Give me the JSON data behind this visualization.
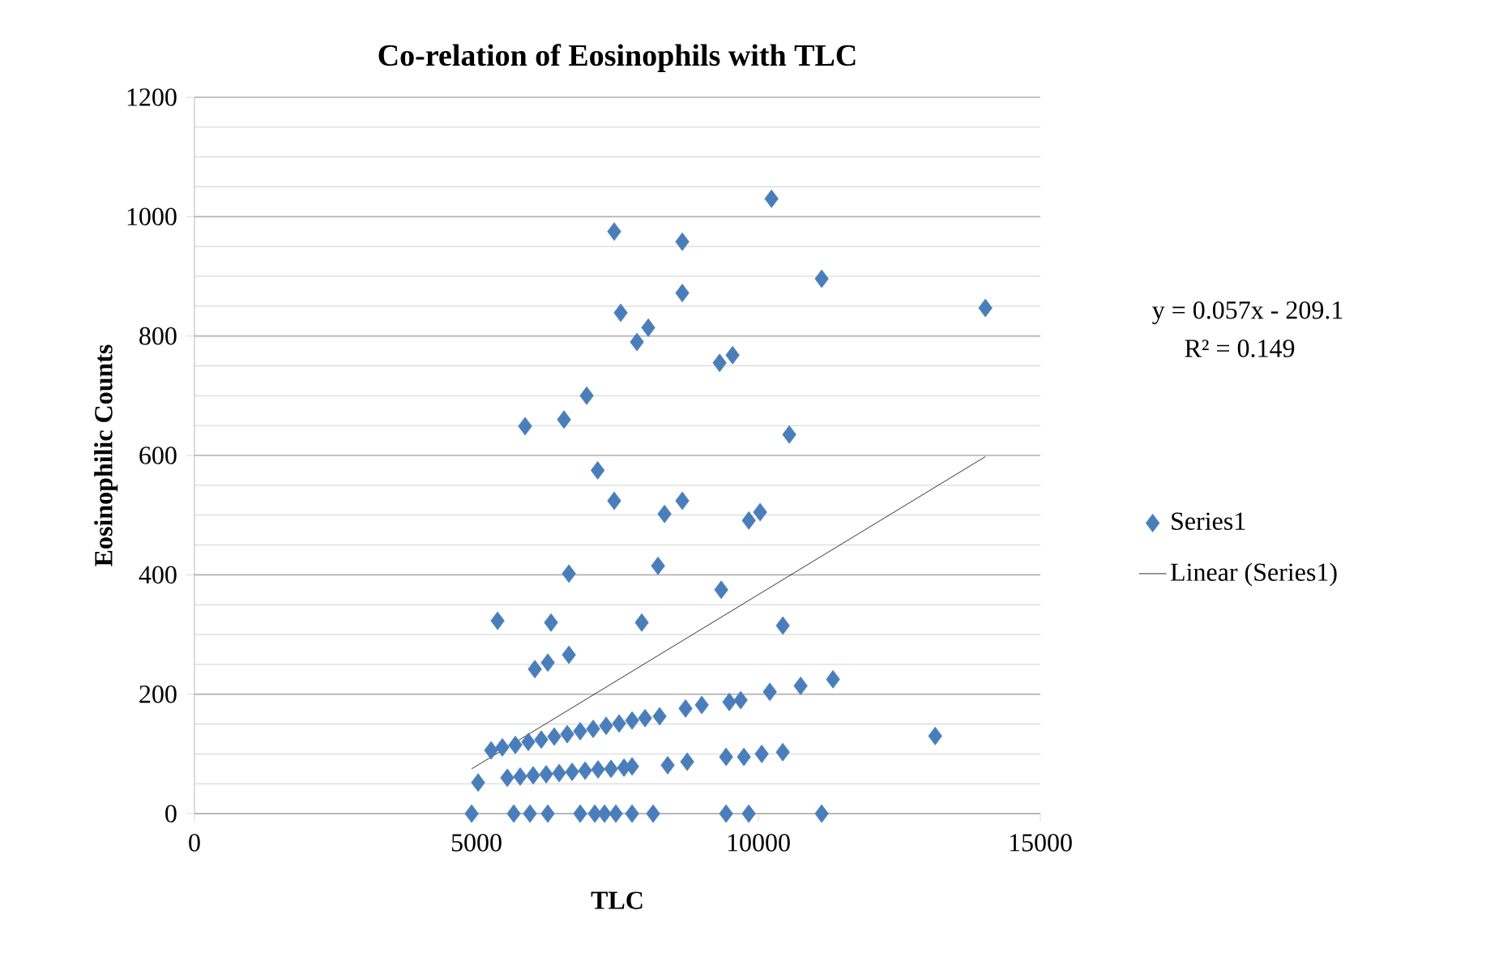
{
  "chart_data": {
    "type": "scatter",
    "title": "Co-relation of Eosinophils with TLC",
    "xlabel": "TLC",
    "ylabel": "Eosinophilic Counts",
    "xlim": [
      0,
      15000
    ],
    "xticks": [
      0,
      5000,
      10000,
      15000
    ],
    "ylim": [
      0,
      1200
    ],
    "yticks": [
      0,
      200,
      400,
      600,
      800,
      1000,
      1200
    ],
    "grid": "y",
    "legend": "right",
    "marker": "diamond",
    "annotations": [
      "y = 0.057x - 209.1",
      "R² = 0.149"
    ],
    "series": [
      {
        "name": "Series1",
        "color": "#4a7ebb",
        "x": [
          10232,
          7443,
          8650,
          11122,
          14025,
          8650,
          7558,
          8047,
          7846,
          9542,
          9312,
          6955,
          6553,
          5863,
          10548,
          7150,
          7443,
          8335,
          8650,
          9830,
          10030,
          6640,
          8220,
          9341,
          5375,
          6323,
          7932,
          10433,
          6640,
          6036,
          6266,
          11323,
          10749,
          10203,
          9686,
          9484,
          8996,
          8708,
          8248,
          13135,
          5260,
          5460,
          5690,
          5920,
          6150,
          6380,
          6610,
          6840,
          7070,
          7300,
          7530,
          7760,
          7990,
          5030,
          5547,
          5776,
          6006,
          6237,
          6467,
          6697,
          6927,
          7157,
          7387,
          7617,
          7760,
          8392,
          8737,
          9427,
          9743,
          10059,
          10433,
          4915,
          5662,
          5949,
          6265,
          6840,
          7099,
          7271,
          7472,
          7760,
          8133,
          9427,
          9829,
          11122
        ],
        "values": [
          1030,
          975,
          958,
          896,
          847,
          872,
          839,
          814,
          790,
          768,
          755,
          700,
          660,
          649,
          635,
          575,
          524,
          502,
          524,
          491,
          505,
          402,
          415,
          375,
          323,
          320,
          320,
          315,
          266,
          242,
          253,
          225,
          214,
          204,
          190,
          187,
          182,
          176,
          163,
          130,
          106,
          111,
          115,
          120,
          124,
          129,
          133,
          138,
          142,
          147,
          151,
          156,
          160,
          52,
          60,
          62,
          64,
          66,
          68,
          70,
          72,
          74,
          75,
          77,
          79,
          81,
          87,
          95,
          95,
          100,
          103,
          0,
          0,
          0,
          0,
          0,
          0,
          0,
          0,
          0,
          0,
          0,
          0,
          0
        ]
      },
      {
        "name": "Linear (Series1)",
        "type": "line",
        "color": "#000000",
        "marker": "none",
        "line_style": "solid",
        "x": [
          4915,
          14025
        ],
        "values": [
          75,
          598
        ]
      }
    ]
  }
}
